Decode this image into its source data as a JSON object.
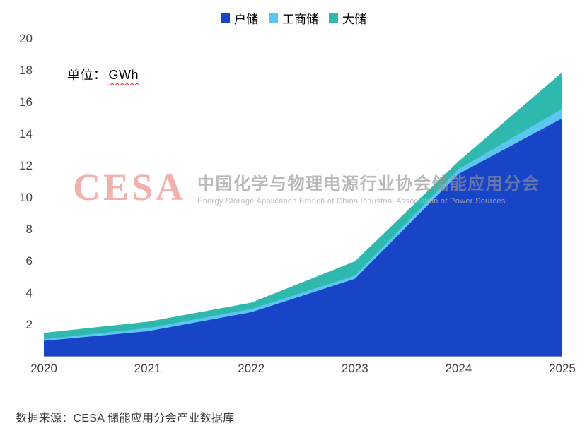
{
  "legend": {
    "items": [
      {
        "label": "户储",
        "color": "#1844C7"
      },
      {
        "label": "工商储",
        "color": "#5BC6F0"
      },
      {
        "label": "大储",
        "color": "#2FB9AE"
      }
    ]
  },
  "unit_label": {
    "prefix": "单位：",
    "value": "GWh"
  },
  "watermark": {
    "logo_text": "CESA",
    "title_cn": "中国化学与物理电源行业协会储能应用分会",
    "title_en": "Energy Storage Application Branch of China Industrial Association of Power Sources"
  },
  "source_text": "数据来源：CESA 储能应用分会产业数据库",
  "chart_data": {
    "type": "area",
    "stacked": true,
    "unit": "GWh",
    "x": [
      "2020",
      "2021",
      "2022",
      "2023",
      "2024",
      "2025"
    ],
    "series": [
      {
        "name": "户储",
        "color": "#1844C7",
        "values": [
          1.0,
          1.6,
          2.8,
          4.9,
          11.5,
          15.0
        ]
      },
      {
        "name": "工商储",
        "color": "#5BC6F0",
        "values": [
          0.1,
          0.2,
          0.2,
          0.2,
          0.3,
          0.6
        ]
      },
      {
        "name": "大储",
        "color": "#2FB9AE",
        "values": [
          0.4,
          0.4,
          0.4,
          0.9,
          0.5,
          2.3
        ]
      }
    ],
    "stacked_totals": [
      1.5,
      2.2,
      3.4,
      6.0,
      12.3,
      17.9
    ],
    "ylim": [
      0,
      20
    ],
    "yticks": [
      2,
      4,
      6,
      8,
      10,
      12,
      14,
      16,
      18,
      20
    ],
    "grid": false,
    "legend_position": "top-center",
    "axis_line_color": "#d0d0d0"
  }
}
